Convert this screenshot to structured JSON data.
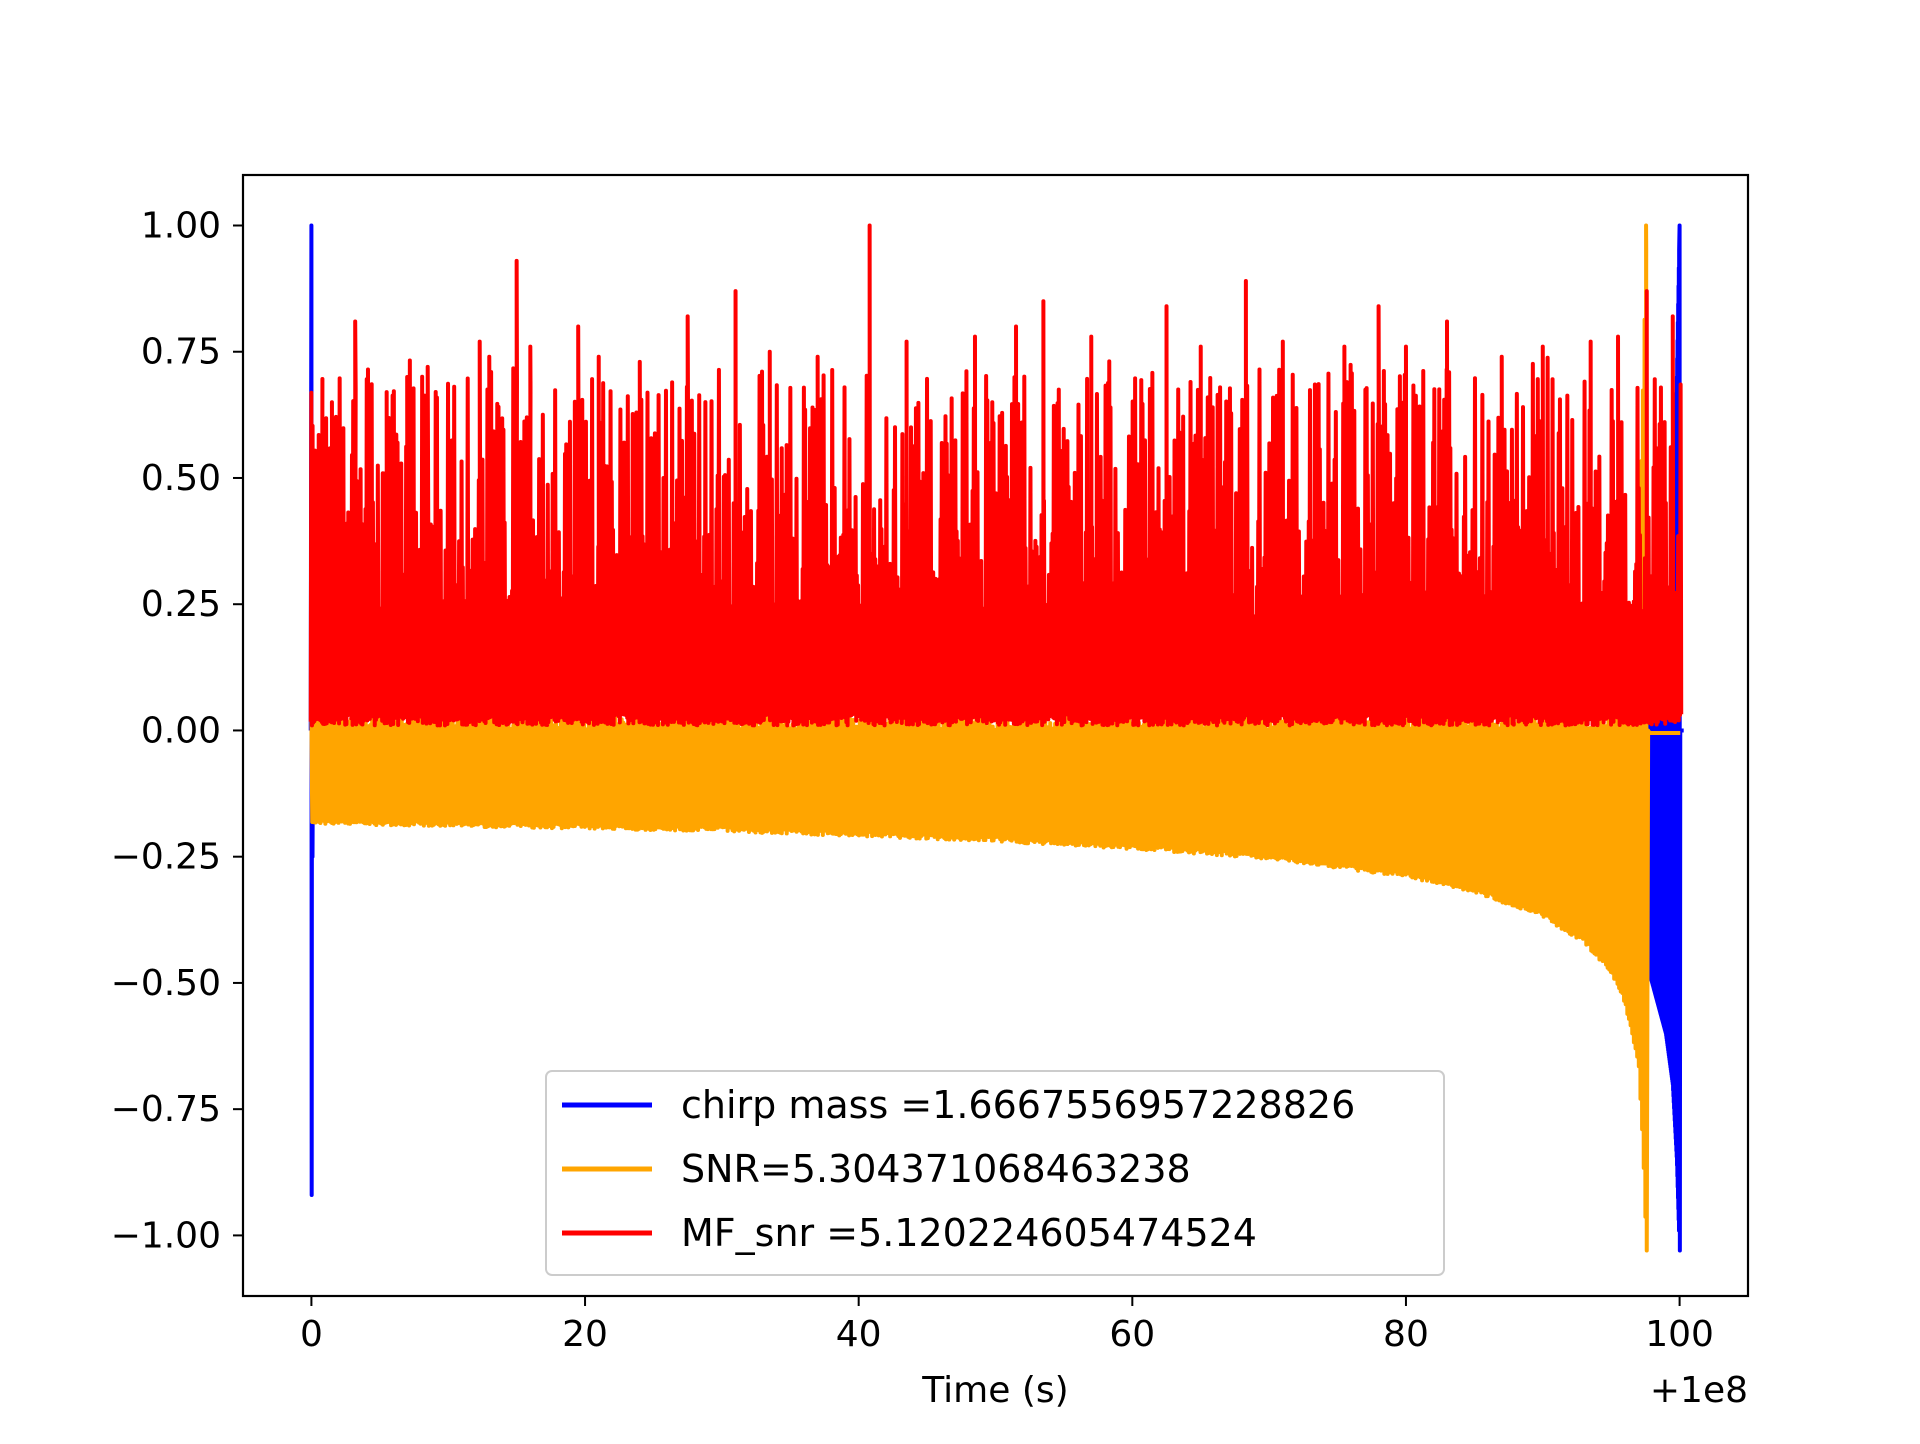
{
  "chart_data": {
    "type": "line",
    "title": "",
    "xlabel": "Time (s)",
    "ylabel": "",
    "x_offset_label": "+1e8",
    "xlim": [
      -5,
      105
    ],
    "ylim": [
      -1.12,
      1.1
    ],
    "x_ticks": [
      0,
      20,
      40,
      60,
      80,
      100
    ],
    "x_tick_labels": [
      "0",
      "20",
      "40",
      "60",
      "80",
      "100"
    ],
    "y_ticks": [
      1.0,
      0.75,
      0.5,
      0.25,
      0.0,
      -0.25,
      -0.5,
      -0.75,
      -1.0
    ],
    "y_tick_labels": [
      "1.00",
      "0.75",
      "0.50",
      "0.25",
      "0.00",
      "−0.25",
      "−0.50",
      "−0.75",
      "−1.00"
    ],
    "grid": false,
    "legend_position": "lower center",
    "series": [
      {
        "name": "chirp mass =1.6667556957228826",
        "color": "#0000ff",
        "description_points": {
          "x": [
            0.0,
            0.0,
            0.05,
            97.5,
            98.0,
            98.5,
            99.0,
            99.5,
            99.8,
            100.0,
            100.2
          ],
          "y_upper": [
            0.55,
            1.0,
            0.3,
            0.0,
            0.02,
            0.05,
            0.1,
            0.3,
            0.7,
            1.0,
            0.0
          ],
          "y_lower": [
            -0.25,
            -0.92,
            -0.1,
            -0.45,
            -0.5,
            -0.55,
            -0.6,
            -0.7,
            -0.85,
            -1.03,
            0.0
          ]
        }
      },
      {
        "name": "SNR=5.304371068463238",
        "color": "#ffa500",
        "description_points": {
          "x": [
            0,
            10,
            20,
            30,
            40,
            50,
            60,
            70,
            80,
            85,
            90,
            93,
            95,
            96,
            97,
            97.3,
            97.6,
            97.8
          ],
          "y_upper": [
            0.02,
            0.02,
            0.02,
            0.02,
            0.02,
            0.02,
            0.02,
            0.02,
            0.02,
            0.02,
            0.02,
            0.02,
            0.02,
            0.05,
            0.3,
            0.65,
            1.0,
            0.0
          ],
          "y_lower": [
            -0.175,
            -0.18,
            -0.185,
            -0.19,
            -0.2,
            -0.21,
            -0.225,
            -0.245,
            -0.28,
            -0.31,
            -0.36,
            -0.41,
            -0.47,
            -0.53,
            -0.65,
            -0.8,
            -1.03,
            0.0
          ]
        }
      },
      {
        "name": "MF_snr =5.120224605474524",
        "color": "#ff0000",
        "baseline_low": 0.01,
        "typical_high": 0.6,
        "peaks": {
          "x": [
            0.2,
            0.8,
            1.5,
            3.2,
            5.5,
            7.0,
            8.5,
            12.3,
            13.0,
            15.0,
            16.0,
            19.5,
            21.0,
            24.0,
            27.5,
            31.0,
            33.5,
            37.0,
            40.8,
            43.5,
            48.5,
            51.5,
            53.5,
            57.0,
            62.5,
            65.0,
            68.3,
            71.0,
            75.5,
            78.0,
            80.0,
            83.0,
            87.0,
            90.0,
            93.5,
            95.5,
            97.6,
            99.5
          ],
          "y": [
            0.55,
            0.6,
            0.65,
            0.81,
            0.67,
            0.7,
            0.72,
            0.77,
            0.74,
            0.93,
            0.76,
            0.8,
            0.74,
            0.73,
            0.82,
            0.87,
            0.75,
            0.74,
            1.0,
            0.77,
            0.78,
            0.8,
            0.85,
            0.78,
            0.84,
            0.76,
            0.89,
            0.77,
            0.76,
            0.84,
            0.76,
            0.81,
            0.74,
            0.76,
            0.77,
            0.78,
            0.87,
            0.82
          ]
        }
      }
    ]
  }
}
